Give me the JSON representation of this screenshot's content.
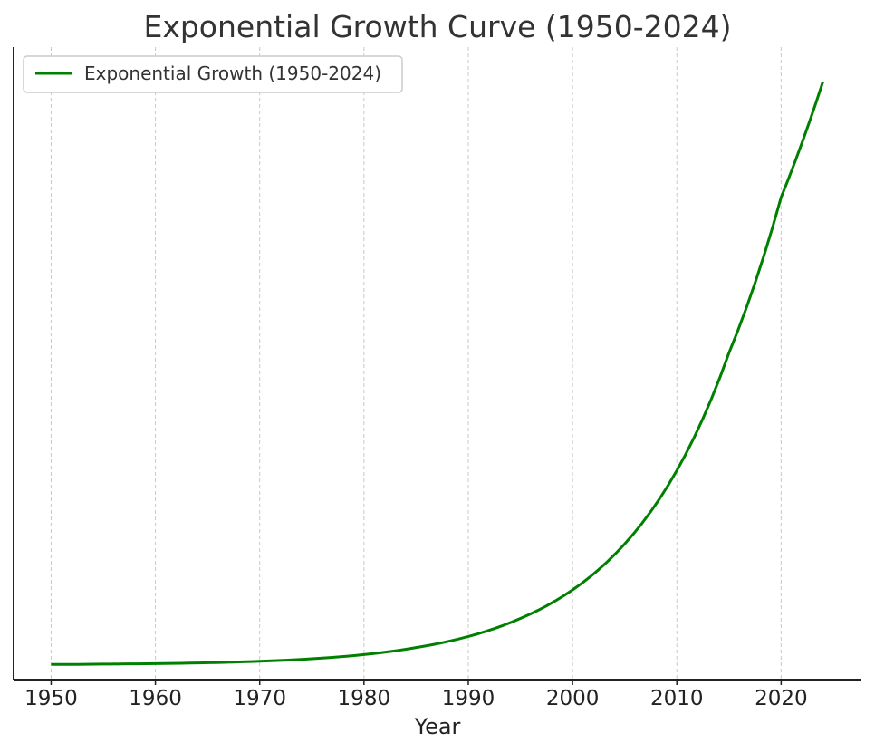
{
  "chart_data": {
    "type": "line",
    "title": "Exponential Growth Curve (1950-2024)",
    "xlabel": "Year",
    "ylabel": "",
    "xlim": [
      1946.4,
      2027.7
    ],
    "ylim": [
      -0.026,
      1.06
    ],
    "xticks": [
      1950,
      1960,
      1970,
      1980,
      1990,
      2000,
      2010,
      2020
    ],
    "yticks_visible": false,
    "grid": "vertical dashed",
    "legend_position": "upper-left",
    "series": [
      {
        "name": "Exponential Growth (1950-2024)",
        "color": "#008000",
        "x": [
          1950,
          1955,
          1960,
          1965,
          1970,
          1975,
          1980,
          1985,
          1990,
          1995,
          2000,
          2005,
          2010,
          2015,
          2020,
          2024
        ],
        "y": [
          0.0,
          0.0006,
          0.0015,
          0.0029,
          0.0055,
          0.0098,
          0.017,
          0.029,
          0.048,
          0.079,
          0.128,
          0.207,
          0.333,
          0.535,
          0.802,
          1.0
        ]
      }
    ]
  }
}
